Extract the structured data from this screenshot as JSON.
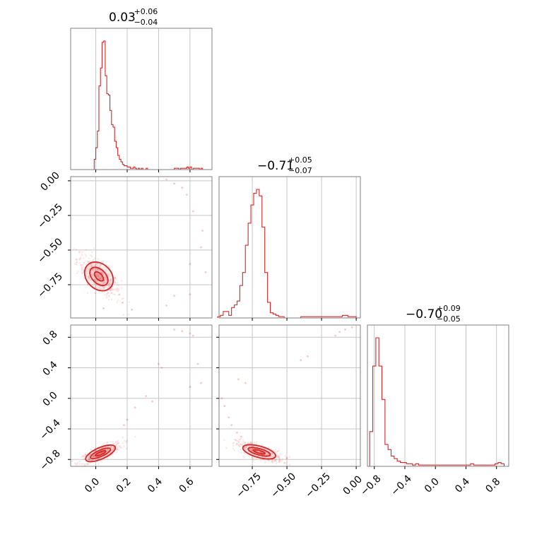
{
  "chart_data": {
    "type": "corner",
    "color": "#d62728",
    "grid": true,
    "parameters": [
      {
        "title": {
          "median": "0.03",
          "plus": "+0.06",
          "minus": "−0.04"
        },
        "range": [
          -0.16,
          0.74
        ],
        "ticks": [
          0.0,
          0.2,
          0.4,
          0.6
        ],
        "tick_labels": [
          "0.0",
          "0.2",
          "0.4",
          "0.6"
        ],
        "hist": {
          "x": [
            -0.005,
            0.005,
            0.015,
            0.025,
            0.035,
            0.045,
            0.055,
            0.065,
            0.075,
            0.085,
            0.095,
            0.105,
            0.115,
            0.125,
            0.135,
            0.145,
            0.155,
            0.165,
            0.175,
            0.185,
            0.195,
            0.205,
            0.215,
            0.225,
            0.235,
            0.245,
            0.255,
            0.265,
            0.275,
            0.285,
            0.295,
            0.305,
            0.315,
            0.325,
            0.335,
            0.345,
            0.355,
            0.365,
            0.375,
            0.385,
            0.395,
            0.405,
            0.415,
            0.425,
            0.435,
            0.445,
            0.455,
            0.465,
            0.475,
            0.485,
            0.495,
            0.505,
            0.515,
            0.525,
            0.535,
            0.545,
            0.555,
            0.565,
            0.575,
            0.585,
            0.595,
            0.605,
            0.615,
            0.625,
            0.635,
            0.645,
            0.655,
            0.665,
            0.675
          ],
          "counts": [
            8,
            17,
            30,
            65,
            79,
            99,
            100,
            73,
            59,
            58,
            46,
            35,
            33,
            22,
            17,
            11,
            8,
            6,
            4,
            3,
            3,
            2,
            2,
            1,
            1,
            2,
            1,
            0,
            1,
            0,
            1,
            0,
            0,
            1,
            0,
            0,
            0,
            0,
            0,
            0,
            0,
            0,
            0,
            0,
            0,
            0,
            0,
            0,
            0,
            0,
            0,
            1,
            1,
            1,
            0,
            1,
            1,
            1,
            1,
            2,
            1,
            2,
            0,
            1,
            1,
            1,
            1,
            0,
            1
          ]
        }
      },
      {
        "title": {
          "median": "−0.71",
          "plus": "+0.05",
          "minus": "−0.07"
        },
        "range": [
          -0.99,
          0.03
        ],
        "ticks": [
          -0.75,
          -0.5,
          -0.25,
          0.0
        ],
        "tick_labels": [
          "−0.75",
          "−0.50",
          "−0.25",
          "0.00"
        ],
        "hist": {
          "x": [
            -0.99,
            -0.97,
            -0.95,
            -0.93,
            -0.91,
            -0.89,
            -0.87,
            -0.85,
            -0.83,
            -0.81,
            -0.79,
            -0.77,
            -0.75,
            -0.73,
            -0.71,
            -0.69,
            -0.67,
            -0.65,
            -0.63,
            -0.61,
            -0.59,
            -0.57,
            -0.55,
            -0.53,
            -0.51,
            -0.49,
            -0.47,
            -0.45,
            -0.43,
            -0.41,
            -0.39,
            -0.37,
            -0.35,
            -0.33,
            -0.31,
            -0.29,
            -0.27,
            -0.25,
            -0.23,
            -0.21,
            -0.19,
            -0.17,
            -0.15,
            -0.13,
            -0.11,
            -0.09,
            -0.07,
            -0.05,
            -0.03,
            -0.01,
            0.01
          ],
          "counts": [
            1,
            2,
            5,
            5,
            2,
            8,
            10,
            13,
            25,
            35,
            56,
            73,
            87,
            96,
            99,
            94,
            70,
            35,
            12,
            4,
            3,
            2,
            1,
            1,
            0,
            0,
            0,
            0,
            0,
            0,
            1,
            1,
            1,
            1,
            1,
            1,
            1,
            1,
            1,
            1,
            1,
            1,
            1,
            1,
            1,
            2,
            2,
            1,
            1,
            1,
            0
          ]
        }
      },
      {
        "title": {
          "median": "−0.70",
          "plus": "+0.09",
          "minus": "−0.05"
        },
        "range": [
          -0.89,
          0.96
        ],
        "ticks": [
          -0.8,
          -0.4,
          0.0,
          0.4,
          0.8
        ],
        "tick_labels": [
          "−0.8",
          "−0.4",
          "0.0",
          "0.4",
          "0.8"
        ],
        "hist": {
          "x": [
            -0.84,
            -0.8,
            -0.76,
            -0.72,
            -0.68,
            -0.64,
            -0.6,
            -0.56,
            -0.52,
            -0.48,
            -0.44,
            -0.4,
            -0.36,
            -0.32,
            -0.28,
            -0.24,
            -0.2,
            -0.16,
            -0.12,
            -0.08,
            -0.04,
            0.0,
            0.04,
            0.08,
            0.12,
            0.16,
            0.2,
            0.24,
            0.28,
            0.32,
            0.36,
            0.4,
            0.44,
            0.48,
            0.52,
            0.56,
            0.6,
            0.64,
            0.68,
            0.72,
            0.76,
            0.8,
            0.84,
            0.88
          ],
          "counts": [
            27,
            78,
            100,
            78,
            52,
            17,
            13,
            8,
            6,
            4,
            3,
            3,
            2,
            2,
            1,
            2,
            1,
            1,
            1,
            1,
            1,
            1,
            1,
            1,
            1,
            1,
            1,
            1,
            1,
            1,
            1,
            1,
            1,
            2,
            1,
            1,
            1,
            1,
            1,
            1,
            1,
            2,
            3,
            2
          ]
        }
      }
    ],
    "pairs": [
      {
        "x_param": 0,
        "y_param": 1,
        "density_center": [
          0.02,
          -0.69
        ],
        "density_spread": [
          0.05,
          0.06
        ],
        "density_slope": -1.6,
        "tail_points": [
          [
            0.5,
            -0.02
          ],
          [
            0.55,
            -0.05
          ],
          [
            0.58,
            -0.1
          ],
          [
            0.62,
            -0.22
          ],
          [
            0.68,
            -0.36
          ],
          [
            0.67,
            -0.48
          ],
          [
            0.5,
            -0.83
          ],
          [
            0.6,
            -0.82
          ],
          [
            0.23,
            -0.93
          ],
          [
            0.17,
            -0.88
          ],
          [
            0.45,
            -0.9
          ],
          [
            0.05,
            -0.92
          ],
          [
            0.6,
            -0.6
          ],
          [
            0.7,
            -0.66
          ],
          [
            0.45,
            0.01
          ]
        ]
      },
      {
        "x_param": 0,
        "y_param": 2,
        "density_center": [
          0.03,
          -0.72
        ],
        "density_spread": [
          0.05,
          0.05
        ],
        "density_slope": 1.5,
        "tail_points": [
          [
            0.5,
            0.9
          ],
          [
            0.55,
            0.88
          ],
          [
            0.6,
            0.85
          ],
          [
            0.62,
            0.82
          ],
          [
            0.65,
            0.45
          ],
          [
            0.67,
            0.2
          ],
          [
            0.6,
            0.15
          ],
          [
            0.42,
            0.4
          ],
          [
            0.4,
            0.45
          ],
          [
            0.32,
            0.03
          ],
          [
            0.36,
            -0.04
          ],
          [
            0.2,
            -0.28
          ],
          [
            0.25,
            -0.12
          ],
          [
            0.18,
            -0.35
          ]
        ]
      },
      {
        "x_param": 1,
        "y_param": 2,
        "density_center": [
          -0.7,
          -0.7
        ],
        "density_spread": [
          0.06,
          0.05
        ],
        "density_slope": -1.0,
        "tail_points": [
          [
            -0.97,
            0.0
          ],
          [
            -0.95,
            -0.1
          ],
          [
            -0.92,
            -0.25
          ],
          [
            -0.9,
            -0.35
          ],
          [
            -0.86,
            -0.45
          ],
          [
            -0.83,
            -0.5
          ],
          [
            -0.4,
            0.5
          ],
          [
            -0.35,
            0.55
          ],
          [
            -0.15,
            0.82
          ],
          [
            -0.12,
            0.87
          ],
          [
            -0.08,
            0.9
          ],
          [
            -0.03,
            0.93
          ],
          [
            -0.8,
            0.2
          ],
          [
            -0.85,
            0.25
          ],
          [
            -0.5,
            -0.78
          ]
        ]
      }
    ]
  }
}
